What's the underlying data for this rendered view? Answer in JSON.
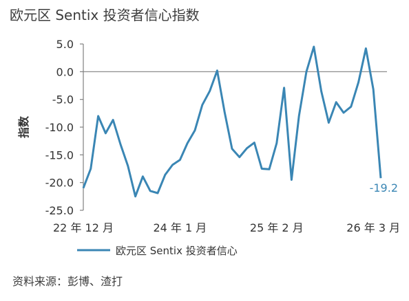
{
  "title": "欧元区 Sentix 投资者信心指数",
  "source": "资料来源：彭博、渣打",
  "colors": {
    "line": "#3a86b4",
    "axis": "#808080",
    "text": "#333333"
  },
  "chart_data": {
    "type": "line",
    "title": "欧元区 Sentix 投资者信心指数",
    "ylabel": "指数",
    "ylim": [
      -25,
      5
    ],
    "yticks": [
      5.0,
      0.0,
      -5.0,
      -10.0,
      -15.0,
      -20.0,
      -25.0
    ],
    "ytick_labels": [
      "5.0",
      "0.0",
      "-5.0",
      "-10.0",
      "-15.0",
      "-20.0",
      "-25.0"
    ],
    "x_tick_labels": [
      {
        "label": "22 年 12 月",
        "index": 0
      },
      {
        "label": "24 年 1 月",
        "index": 13
      },
      {
        "label": "25 年 2 月",
        "index": 26
      },
      {
        "label": "26 年 3 月",
        "index": 39
      }
    ],
    "grid": false,
    "legend": "bottom",
    "series": [
      {
        "name": "欧元区 Sentix 投资者信心",
        "values": [
          -21.0,
          -17.5,
          -8.0,
          -11.1,
          -8.7,
          -13.1,
          -17.0,
          -22.5,
          -18.9,
          -21.5,
          -21.9,
          -18.6,
          -16.8,
          -15.9,
          -12.9,
          -10.6,
          -6.0,
          -3.5,
          0.2,
          -7.3,
          -13.9,
          -15.4,
          -13.8,
          -12.8,
          -17.5,
          -17.6,
          -12.9,
          -2.9,
          -19.5,
          -8.0,
          0.0,
          4.5,
          -3.5,
          -9.2,
          -5.5,
          -7.4,
          -6.3,
          -1.9,
          4.2,
          -3.2,
          -19.2
        ]
      }
    ],
    "annotations": [
      {
        "text": "-19.2",
        "index": 40
      }
    ]
  }
}
